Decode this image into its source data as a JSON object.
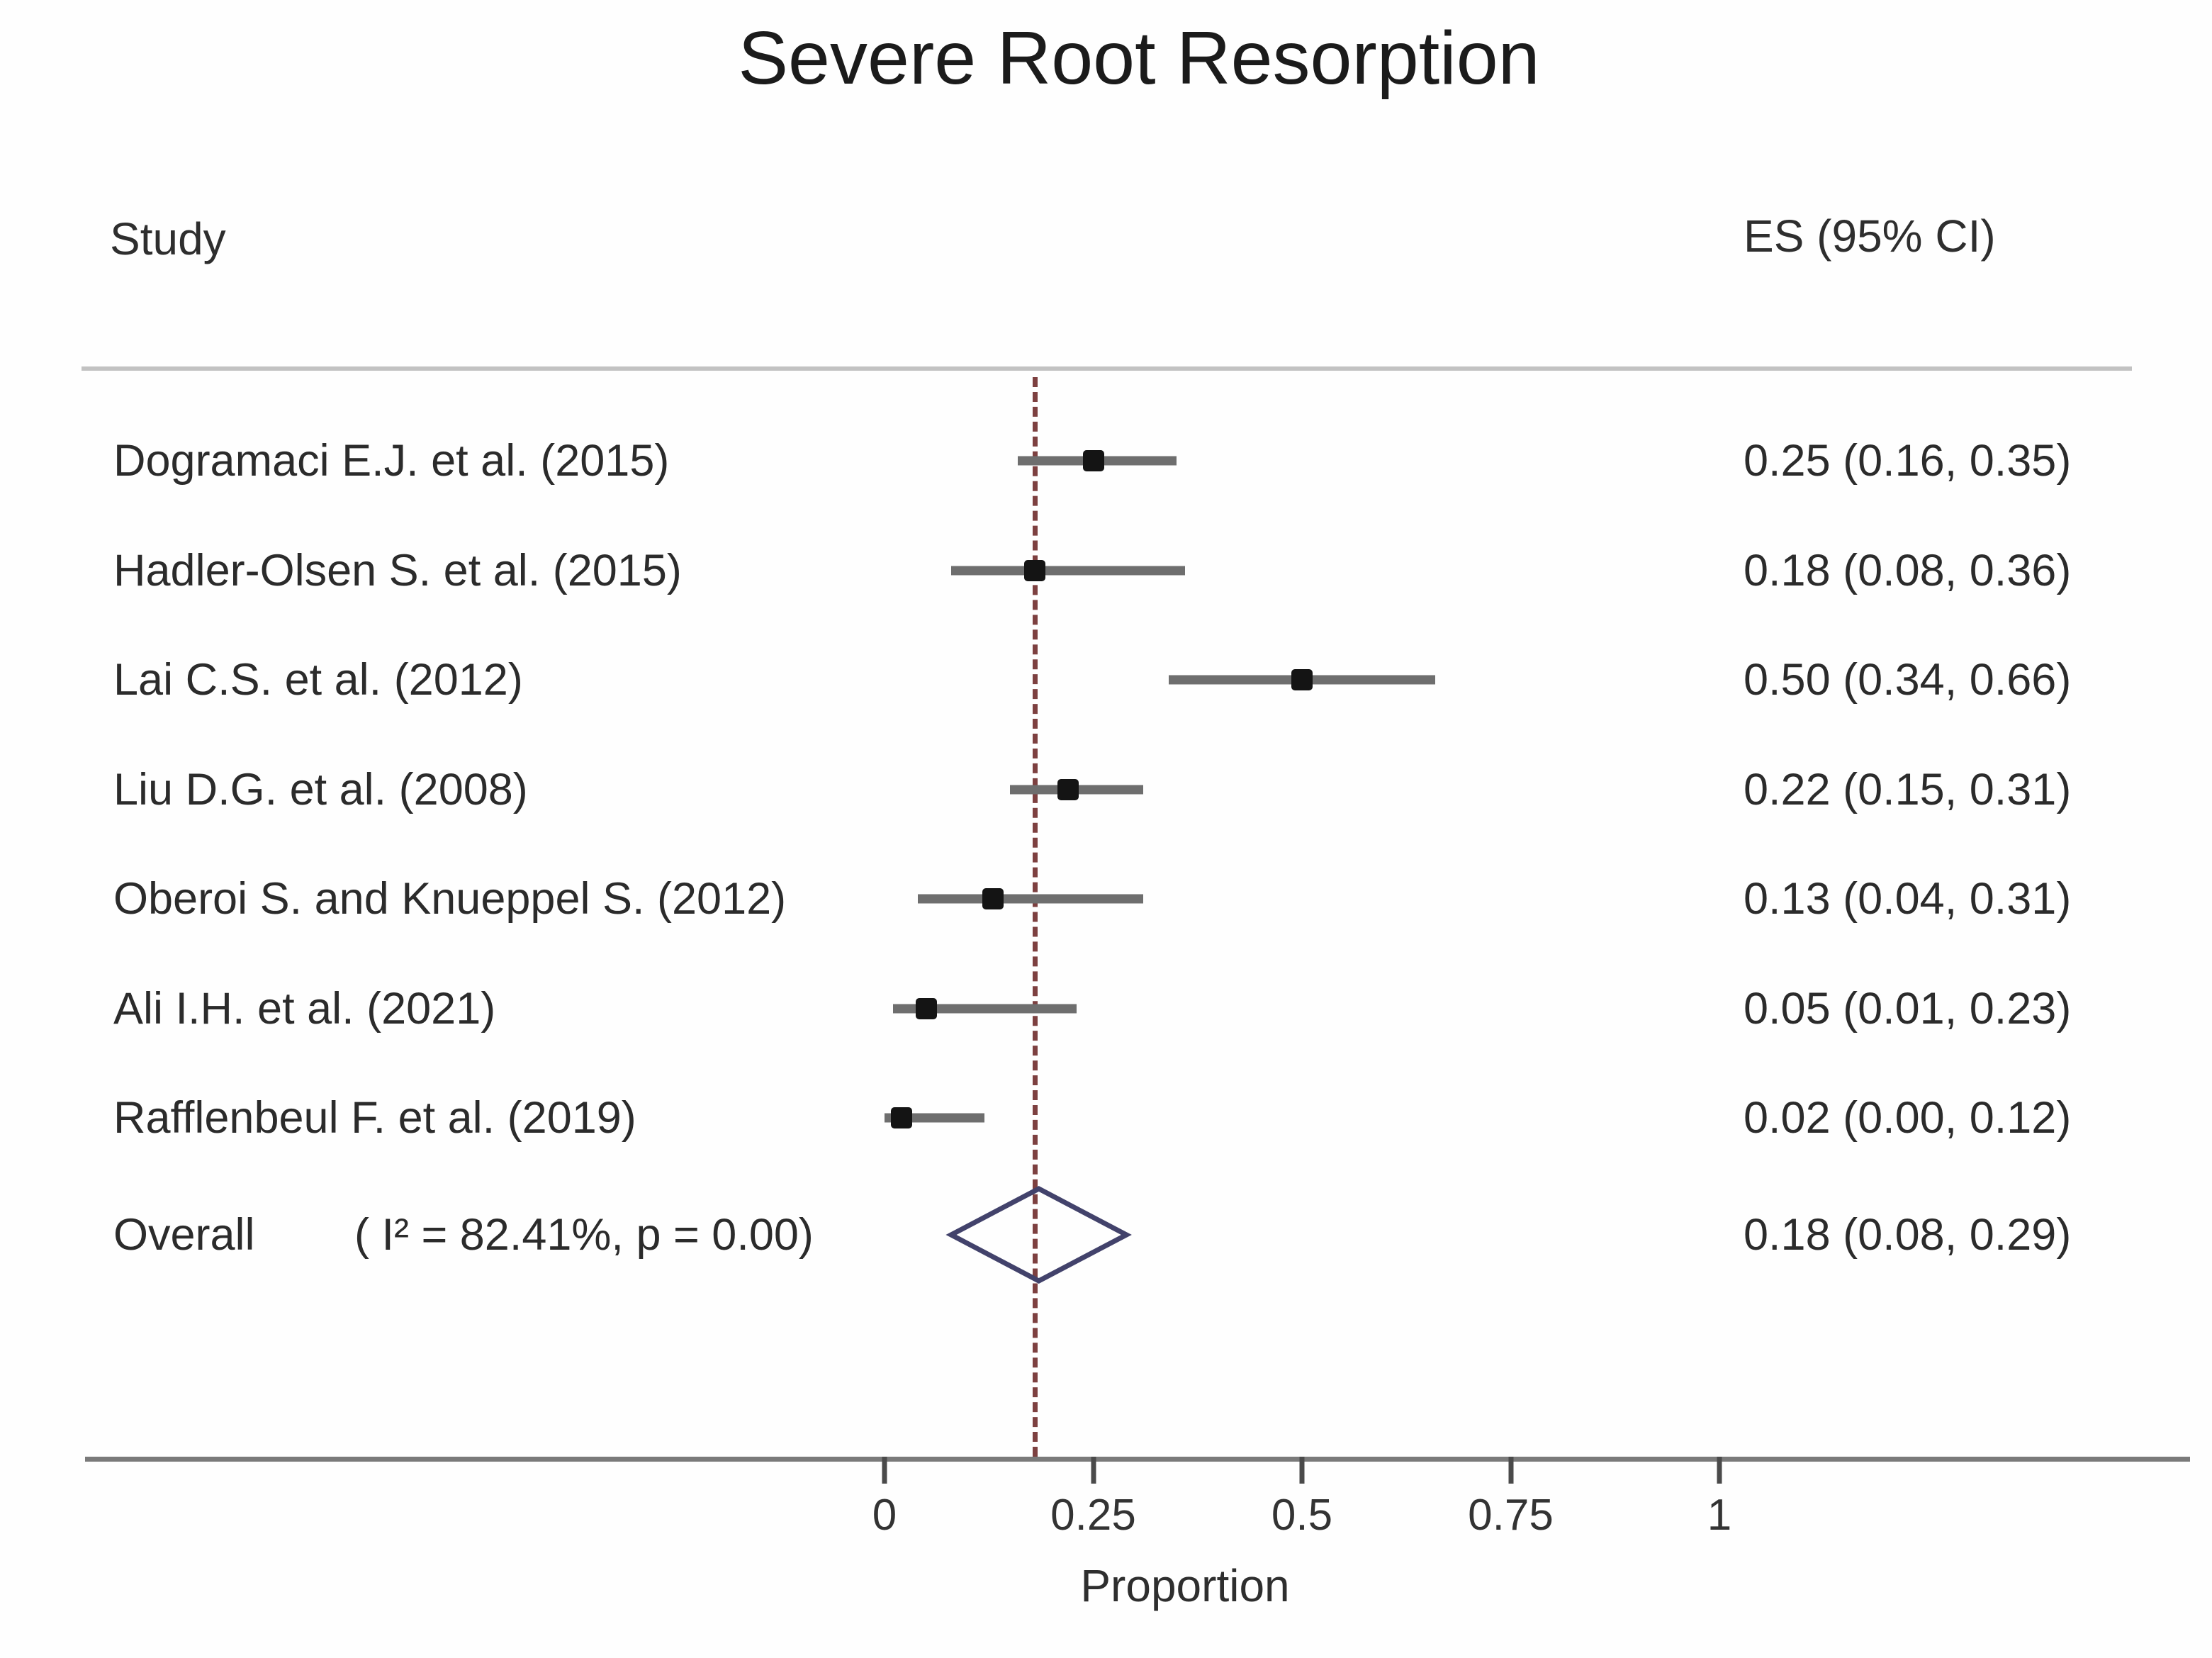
{
  "title": "Severe Root Resorption",
  "columns": {
    "study": "Study",
    "es": "ES (95% CI)"
  },
  "xaxis": {
    "label": "Proportion",
    "ticks": [
      "0",
      "0.25",
      "0.5",
      "0.75",
      "1"
    ],
    "tick_values": [
      0,
      0.25,
      0.5,
      0.75,
      1
    ]
  },
  "studies": [
    {
      "label": "Dogramaci E.J. et al. (2015)",
      "es": 0.25,
      "lo": 0.16,
      "hi": 0.35,
      "es_text": "0.25 (0.16, 0.35)"
    },
    {
      "label": "Hadler-Olsen S. et al. (2015)",
      "es": 0.18,
      "lo": 0.08,
      "hi": 0.36,
      "es_text": "0.18 (0.08, 0.36)"
    },
    {
      "label": "Lai C.S. et al. (2012)",
      "es": 0.5,
      "lo": 0.34,
      "hi": 0.66,
      "es_text": "0.50 (0.34, 0.66)"
    },
    {
      "label": "Liu D.G. et al. (2008)",
      "es": 0.22,
      "lo": 0.15,
      "hi": 0.31,
      "es_text": "0.22 (0.15, 0.31)"
    },
    {
      "label": "Oberoi S. and Knueppel S. (2012)",
      "es": 0.13,
      "lo": 0.04,
      "hi": 0.31,
      "es_text": "0.13 (0.04, 0.31)"
    },
    {
      "label": "Ali I.H. et al. (2021)",
      "es": 0.05,
      "lo": 0.01,
      "hi": 0.23,
      "es_text": "0.05 (0.01, 0.23)"
    },
    {
      "label": "Rafflenbeul F. et al. (2019)",
      "es": 0.02,
      "lo": 0.0,
      "hi": 0.12,
      "es_text": "0.02 (0.00, 0.12)"
    }
  ],
  "overall": {
    "label": "Overall",
    "heterogeneity": "( I² = 82.41%, p = 0.00)",
    "es": 0.18,
    "lo": 0.08,
    "hi": 0.29,
    "es_text": "0.18 (0.08, 0.29)"
  },
  "colors": {
    "ci_bar": "#6e6e6e",
    "marker": "#141414",
    "dashed_reference": "#7d4040",
    "diamond_outline": "#42426b",
    "axis": "#7a7a7a",
    "separator": "#c2c2c2",
    "text": "#2b2b2b"
  },
  "chart_data": {
    "type": "scatter",
    "subtype": "forest-plot",
    "title": "Severe Root Resorption",
    "xlabel": "Proportion",
    "ylabel": "",
    "xlim": [
      0,
      1
    ],
    "xticks": [
      0,
      0.25,
      0.5,
      0.75,
      1
    ],
    "grid": false,
    "reference_line_x": 0.18,
    "reference_line_style": "dashed",
    "series": [
      {
        "name": "Dogramaci E.J. et al. (2015)",
        "es": 0.25,
        "ci_low": 0.16,
        "ci_high": 0.35
      },
      {
        "name": "Hadler-Olsen S. et al. (2015)",
        "es": 0.18,
        "ci_low": 0.08,
        "ci_high": 0.36
      },
      {
        "name": "Lai C.S. et al. (2012)",
        "es": 0.5,
        "ci_low": 0.34,
        "ci_high": 0.66
      },
      {
        "name": "Liu D.G. et al. (2008)",
        "es": 0.22,
        "ci_low": 0.15,
        "ci_high": 0.31
      },
      {
        "name": "Oberoi S. and Knueppel S. (2012)",
        "es": 0.13,
        "ci_low": 0.04,
        "ci_high": 0.31
      },
      {
        "name": "Ali I.H. et al. (2021)",
        "es": 0.05,
        "ci_low": 0.01,
        "ci_high": 0.23
      },
      {
        "name": "Rafflenbeul F. et al. (2019)",
        "es": 0.02,
        "ci_low": 0.0,
        "ci_high": 0.12
      }
    ],
    "overall": {
      "name": "Overall",
      "es": 0.18,
      "ci_low": 0.08,
      "ci_high": 0.29,
      "i_squared": "82.41%",
      "p_value": "0.00"
    }
  }
}
